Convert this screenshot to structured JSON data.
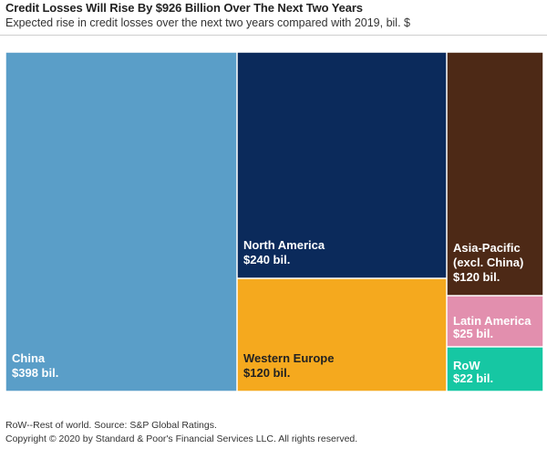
{
  "chart_data": {
    "type": "treemap",
    "title": "Credit Losses Will Rise By $926 Billion Over The Next Two Years",
    "subtitle": "Expected rise in credit losses over the next two years compared with 2019, bil. $",
    "unit": "bil. $",
    "series": [
      {
        "name": "China",
        "label": "China",
        "value_label": "$398 bil.",
        "value": 398,
        "color": "#5a9ec8"
      },
      {
        "name": "North America",
        "label": "North America",
        "value_label": "$240 bil.",
        "value": 240,
        "color": "#0b2a5b"
      },
      {
        "name": "Asia-Pacific (excl. China)",
        "label": "Asia-Pacific\n(excl. China)",
        "value_label": "$120 bil.",
        "value": 120,
        "color": "#4d2916"
      },
      {
        "name": "Western Europe",
        "label": "Western Europe",
        "value_label": "$120 bil.",
        "value": 120,
        "color": "#f5a91e"
      },
      {
        "name": "Latin America",
        "label": "Latin America",
        "value_label": "$25 bil.",
        "value": 25,
        "color": "#e28fae"
      },
      {
        "name": "RoW",
        "label": "RoW",
        "value_label": "$22 bil.",
        "value": 22,
        "color": "#16c7a3"
      }
    ]
  },
  "footnote": "RoW--Rest of world. Source: S&P Global Ratings.",
  "copyright": "Copyright © 2020 by Standard & Poor's Financial Services LLC. All rights reserved."
}
